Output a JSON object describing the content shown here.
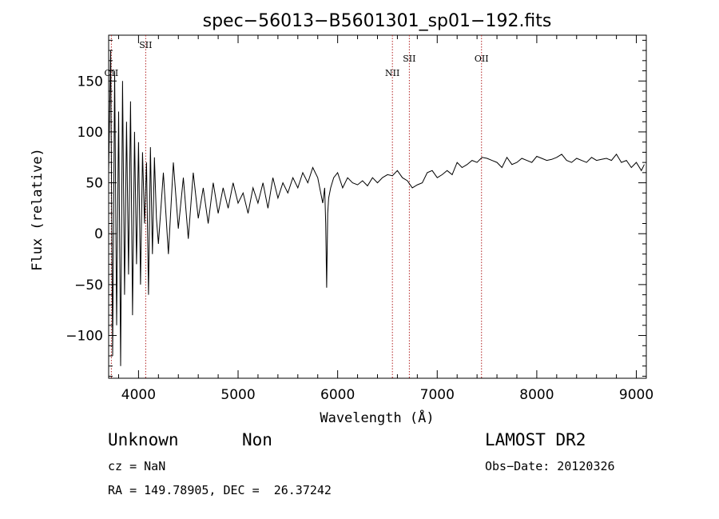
{
  "chart_data": {
    "type": "line",
    "title": "spec−56013−B5601301_sp01−192.fits",
    "xlabel": "Wavelength (Å)",
    "ylabel": "Flux (relative)",
    "xlim": [
      3700,
      9100
    ],
    "ylim": [
      -142,
      195
    ],
    "xticks": [
      4000,
      5000,
      6000,
      7000,
      8000,
      9000
    ],
    "xtick_labels": [
      "4000",
      "5000",
      "6000",
      "7000",
      "8000",
      "9000"
    ],
    "yticks": [
      -100,
      -50,
      0,
      50,
      100,
      150
    ],
    "ytick_labels": [
      "−100",
      "−50",
      "0",
      "50",
      "100",
      "150"
    ],
    "grid": false,
    "series": [
      {
        "x": [
          3700,
          3720,
          3740,
          3760,
          3780,
          3800,
          3820,
          3840,
          3860,
          3880,
          3900,
          3920,
          3940,
          3960,
          3980,
          4000,
          4020,
          4040,
          4060,
          4080,
          4100,
          4120,
          4140,
          4160,
          4180,
          4200,
          4250,
          4300,
          4350,
          4400,
          4450,
          4500,
          4550,
          4600,
          4650,
          4700,
          4750,
          4800,
          4850,
          4900,
          4950,
          5000,
          5050,
          5100,
          5150,
          5200,
          5250,
          5300,
          5350,
          5400,
          5450,
          5500,
          5550,
          5600,
          5650,
          5700,
          5750,
          5800,
          5850,
          5870,
          5880,
          5890,
          5900,
          5910,
          5930,
          5960,
          6000,
          6050,
          6100,
          6150,
          6200,
          6250,
          6300,
          6350,
          6400,
          6450,
          6500,
          6550,
          6600,
          6650,
          6700,
          6750,
          6800,
          6850,
          6900,
          6950,
          7000,
          7050,
          7100,
          7150,
          7200,
          7250,
          7300,
          7350,
          7400,
          7450,
          7500,
          7550,
          7600,
          7650,
          7700,
          7750,
          7800,
          7850,
          7900,
          7950,
          8000,
          8050,
          8100,
          8150,
          8200,
          8250,
          8300,
          8350,
          8400,
          8450,
          8500,
          8550,
          8600,
          8650,
          8700,
          8750,
          8800,
          8850,
          8900,
          8950,
          9000,
          9050,
          9080
        ],
        "y": [
          60,
          180,
          -120,
          160,
          -90,
          120,
          -130,
          150,
          -60,
          110,
          -40,
          130,
          -80,
          100,
          -30,
          90,
          -50,
          80,
          10,
          70,
          -60,
          85,
          -20,
          75,
          15,
          -10,
          60,
          -20,
          70,
          5,
          55,
          -5,
          60,
          15,
          45,
          10,
          50,
          20,
          45,
          25,
          50,
          30,
          40,
          20,
          45,
          30,
          50,
          25,
          55,
          35,
          50,
          40,
          55,
          45,
          60,
          50,
          65,
          55,
          30,
          45,
          10,
          -53,
          20,
          35,
          45,
          55,
          60,
          45,
          55,
          50,
          48,
          52,
          47,
          55,
          50,
          55,
          58,
          57,
          62,
          55,
          52,
          45,
          48,
          50,
          60,
          62,
          55,
          58,
          62,
          58,
          70,
          65,
          68,
          72,
          70,
          75,
          74,
          72,
          70,
          65,
          75,
          68,
          70,
          74,
          72,
          70,
          76,
          74,
          72,
          73,
          75,
          78,
          72,
          70,
          74,
          72,
          70,
          75,
          72,
          73,
          74,
          72,
          78,
          70,
          72,
          65,
          70,
          62,
          68
        ]
      }
    ],
    "emission_lines": [
      {
        "label": "OII",
        "x": 3727
      },
      {
        "label": "SII",
        "x": 4072
      },
      {
        "label": "NII",
        "x": 6550
      },
      {
        "label": "SII",
        "x": 6720
      },
      {
        "label": "OII",
        "x": 7445
      }
    ],
    "line_color": "#000000",
    "marker_color": "#b22222"
  },
  "info": {
    "class": "Unknown",
    "subclass": "Non",
    "survey": "LAMOST DR2",
    "cz": "cz = NaN",
    "obs_date": "Obs−Date: 20120326",
    "coords": "RA = 149.78905, DEC =  26.37242"
  }
}
